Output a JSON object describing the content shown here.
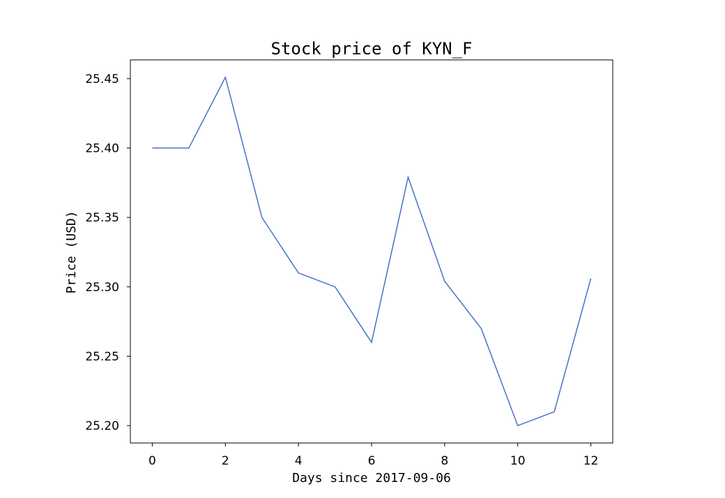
{
  "chart_data": {
    "type": "line",
    "title": "Stock price of KYN_F",
    "xlabel": "Days since 2017-09-06",
    "ylabel": "Price (USD)",
    "x": [
      0,
      1,
      2,
      3,
      4,
      5,
      6,
      7,
      8,
      9,
      10,
      11,
      12
    ],
    "series": [
      {
        "values": [
          25.4,
          25.4,
          25.451,
          25.35,
          25.31,
          25.3,
          25.26,
          25.379,
          25.304,
          25.27,
          25.2,
          25.21,
          25.306
        ]
      }
    ],
    "xlim": [
      -0.6,
      12.6
    ],
    "ylim": [
      25.1875,
      25.4635
    ],
    "xticks": [
      "0",
      "2",
      "4",
      "6",
      "8",
      "10",
      "12"
    ],
    "yticks": [
      "25.20",
      "25.25",
      "25.30",
      "25.35",
      "25.40",
      "25.45"
    ],
    "grid": false,
    "line_color": "#4472c4"
  }
}
